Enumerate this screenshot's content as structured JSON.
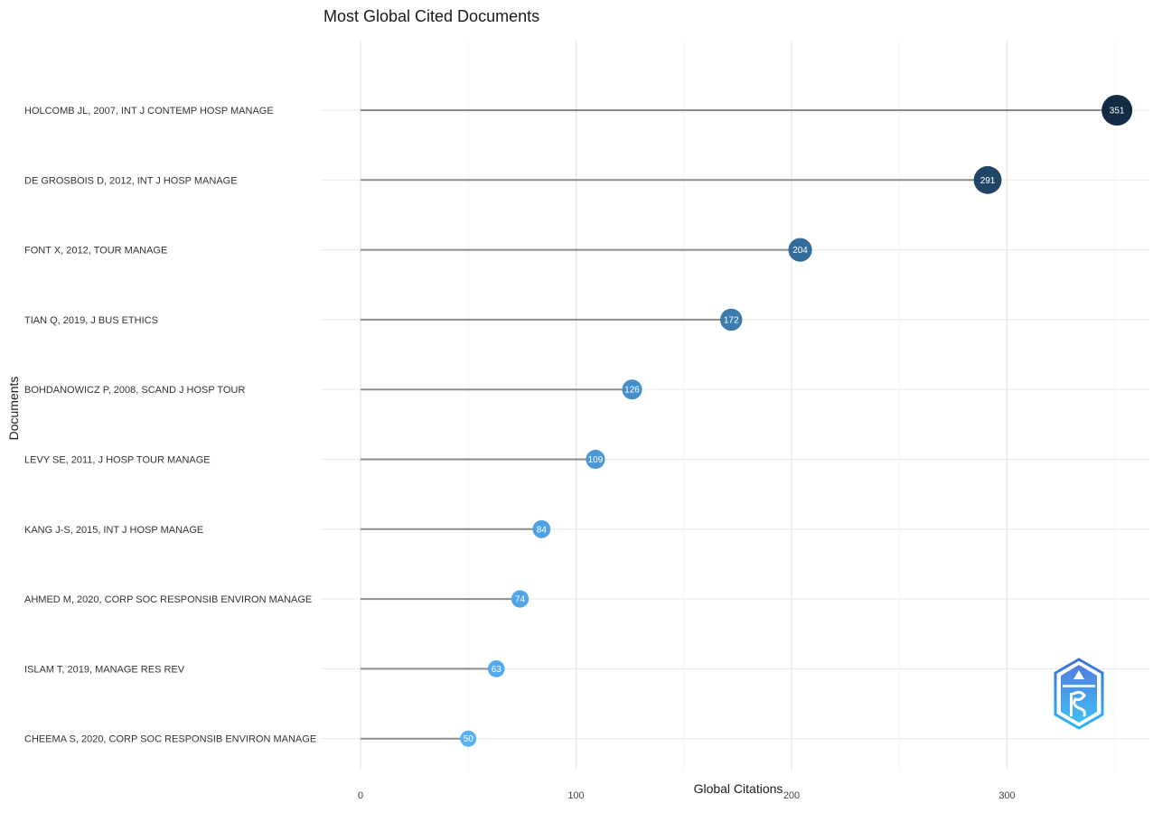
{
  "chart_data": {
    "type": "lollipop",
    "title": "Most Global Cited Documents",
    "xlabel": "Global Citations",
    "ylabel": "Documents",
    "xlim": [
      0,
      360
    ],
    "x_ticks": [
      0,
      100,
      200,
      300
    ],
    "grid": true,
    "categories": [
      "HOLCOMB JL, 2007, INT J CONTEMP HOSP MANAGE",
      "DE GROSBOIS D, 2012, INT J HOSP MANAGE",
      "FONT X, 2012, TOUR MANAGE",
      "TIAN Q, 2019, J BUS ETHICS",
      "BOHDANOWICZ P, 2008, SCAND J HOSP TOUR",
      "LEVY SE, 2011, J HOSP TOUR MANAGE",
      "KANG J-S, 2015, INT J HOSP MANAGE",
      "AHMED M, 2020, CORP SOC RESPONSIB ENVIRON MANAGE",
      "ISLAM T, 2019, MANAGE RES REV",
      "CHEEMA S, 2020, CORP SOC RESPONSIB ENVIRON MANAGE"
    ],
    "values": [
      351,
      291,
      204,
      172,
      126,
      109,
      84,
      74,
      63,
      50
    ],
    "color_scale": [
      "#56B1F7",
      "#132B43"
    ]
  },
  "logo": {
    "icon": "hexagon-logo-icon",
    "color": "#3d8fe0"
  }
}
